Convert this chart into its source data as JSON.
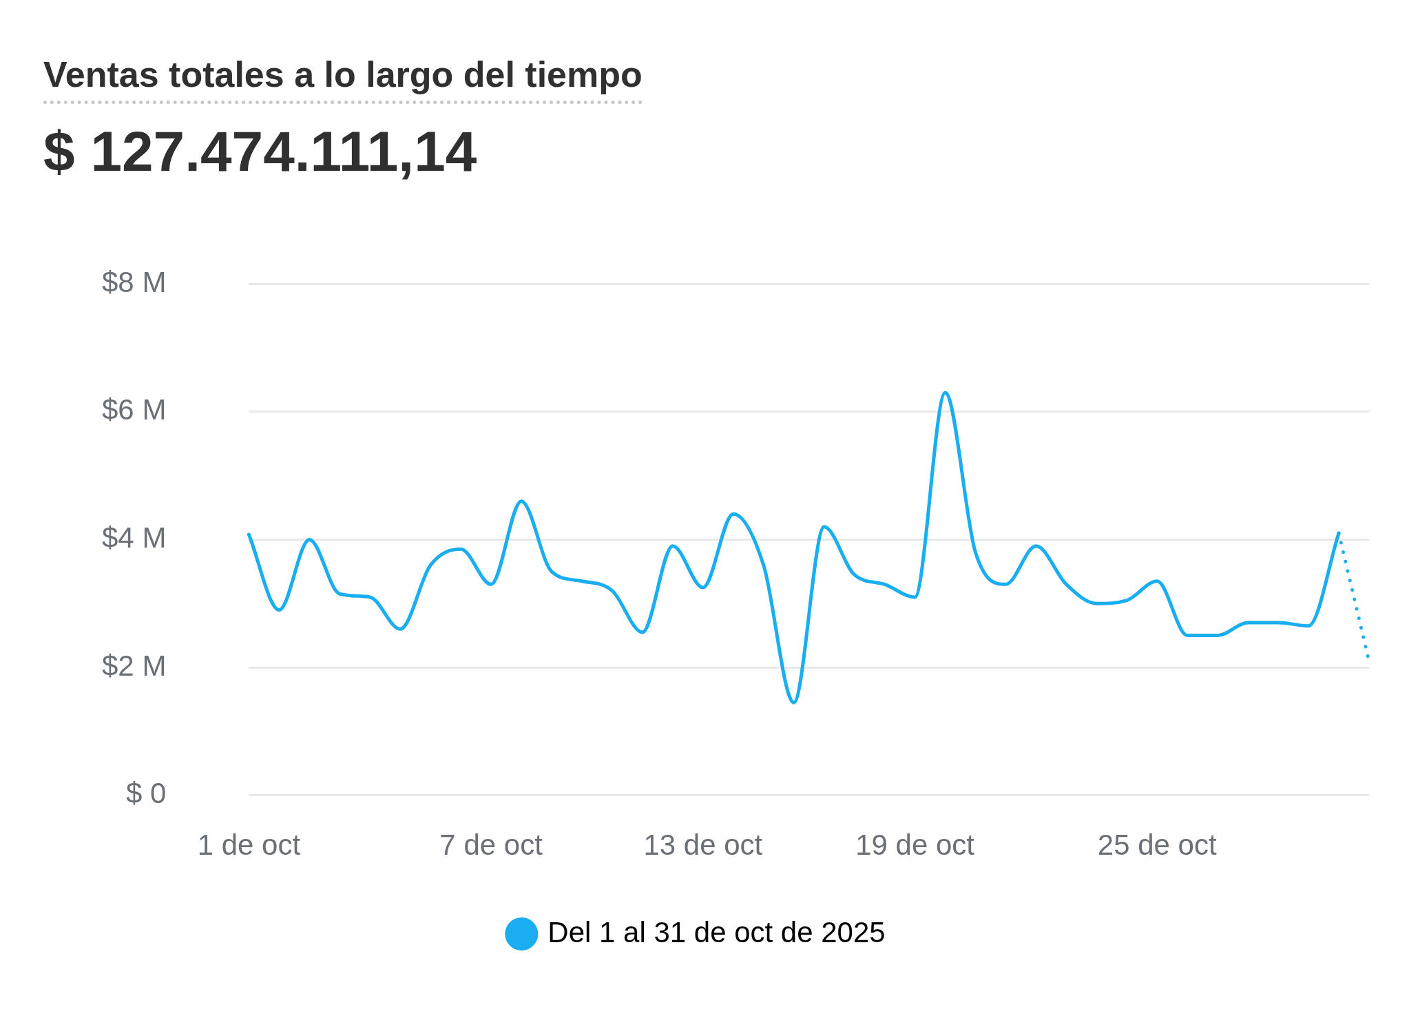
{
  "chart_data": {
    "type": "line",
    "title": "Ventas totales a lo largo del tiempo",
    "subtitle": "$ 127.474.111,14",
    "categories": [
      "1 de oct",
      null,
      null,
      null,
      null,
      null,
      null,
      null,
      "7 de oct",
      null,
      null,
      null,
      null,
      null,
      null,
      "13 de oct",
      null,
      null,
      null,
      null,
      null,
      null,
      "19 de oct",
      null,
      null,
      null,
      null,
      null,
      null,
      null,
      "25 de oct",
      null,
      null,
      null,
      null,
      null,
      null,
      null
    ],
    "series": [
      {
        "name": "Del 1 al 31 de oct de 2025",
        "color": "#1aaef0",
        "line_style": "solid",
        "values": [
          4.08,
          2.9,
          4.0,
          3.15,
          3.1,
          2.6,
          3.6,
          3.85,
          3.3,
          4.6,
          3.5,
          3.35,
          3.2,
          2.55,
          3.9,
          3.25,
          4.4,
          3.6,
          1.45,
          4.2,
          3.45,
          3.3,
          3.1,
          6.3,
          3.8,
          3.3,
          3.9,
          3.3,
          3.0,
          3.05,
          3.35,
          2.5,
          2.5,
          2.7,
          2.7,
          2.65,
          4.1,
          null
        ]
      },
      {
        "color": "#1aaef0",
        "line_style": "dotted",
        "values": [
          null,
          null,
          null,
          null,
          null,
          null,
          null,
          null,
          null,
          null,
          null,
          null,
          null,
          null,
          null,
          null,
          null,
          null,
          null,
          null,
          null,
          null,
          null,
          null,
          null,
          null,
          null,
          null,
          null,
          null,
          null,
          null,
          null,
          null,
          null,
          null,
          4.1,
          2.1
        ]
      }
    ],
    "ylim": [
      0,
      8
    ],
    "yticks": [
      {
        "value": 0,
        "label": "$ 0"
      },
      {
        "value": 2,
        "label": "$2 M"
      },
      {
        "value": 4,
        "label": "$4 M"
      },
      {
        "value": 6,
        "label": "$6 M"
      },
      {
        "value": 8,
        "label": "$8 M"
      }
    ],
    "grid": "y",
    "legend": "bottom",
    "marker": "none"
  }
}
